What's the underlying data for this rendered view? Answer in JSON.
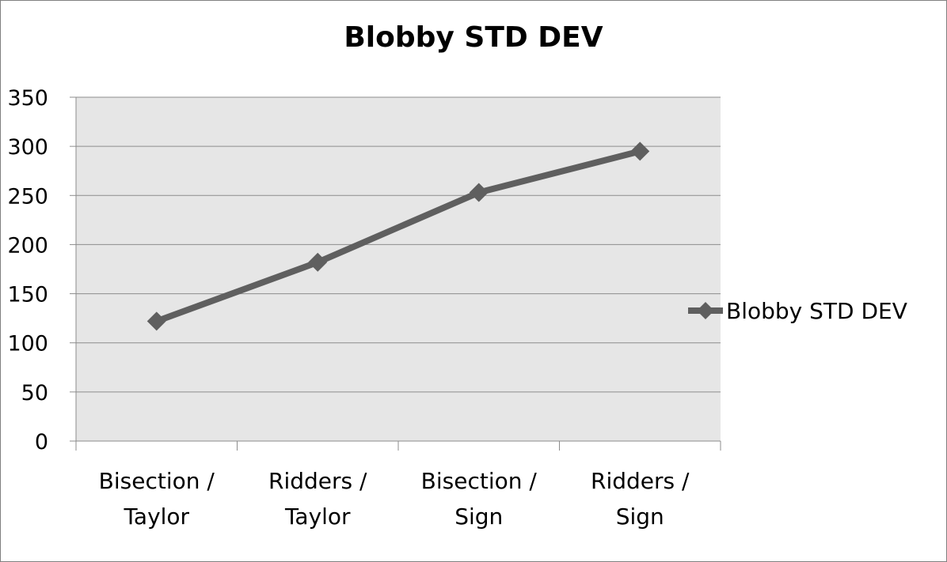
{
  "chart_data": {
    "type": "line",
    "title": "Blobby STD DEV",
    "xlabel": "",
    "ylabel": "",
    "categories": [
      [
        "Bisection /",
        "Taylor"
      ],
      [
        "Ridders /",
        "Taylor"
      ],
      [
        "Bisection /",
        "Sign"
      ],
      [
        "Ridders /",
        "Sign"
      ]
    ],
    "series": [
      {
        "name": "Blobby STD DEV",
        "values": [
          122,
          182,
          253,
          295
        ],
        "color": "#5f5f5f",
        "marker": "diamond"
      }
    ],
    "ylim": [
      0,
      350
    ],
    "yticks": [
      "0",
      "50",
      "100",
      "150",
      "200",
      "250",
      "300",
      "350"
    ],
    "grid": true,
    "plot_background": "#e6e6e6",
    "legend_position": "right"
  }
}
